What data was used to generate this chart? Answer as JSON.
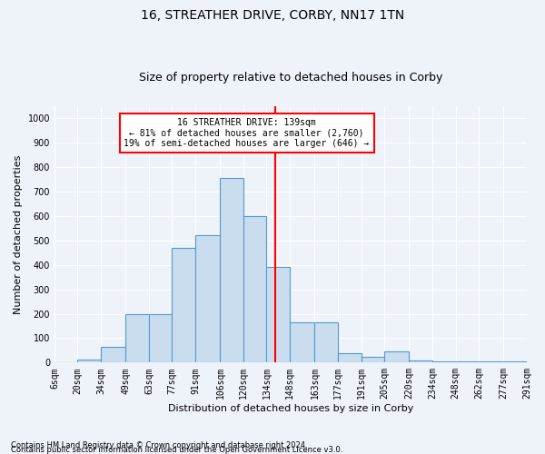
{
  "title": "16, STREATHER DRIVE, CORBY, NN17 1TN",
  "subtitle": "Size of property relative to detached houses in Corby",
  "xlabel": "Distribution of detached houses by size in Corby",
  "ylabel": "Number of detached properties",
  "footnote1": "Contains HM Land Registry data © Crown copyright and database right 2024.",
  "footnote2": "Contains public sector information licensed under the Open Government Licence v3.0.",
  "annotation_line1": "16 STREATHER DRIVE: 139sqm",
  "annotation_line2": "← 81% of detached houses are smaller (2,760)",
  "annotation_line3": "19% of semi-detached houses are larger (646) →",
  "property_size": 139,
  "bin_edges": [
    6,
    20,
    34,
    49,
    63,
    77,
    91,
    106,
    120,
    134,
    148,
    163,
    177,
    191,
    205,
    220,
    234,
    248,
    262,
    277,
    291
  ],
  "bar_heights": [
    0,
    13,
    65,
    200,
    200,
    470,
    520,
    755,
    600,
    390,
    165,
    165,
    40,
    25,
    45,
    10,
    5,
    5,
    5,
    5
  ],
  "bar_color": "#c9ddef",
  "bar_edge_color": "#5599cc",
  "vline_color": "red",
  "vline_x": 139,
  "ylim": [
    0,
    1050
  ],
  "yticks": [
    0,
    100,
    200,
    300,
    400,
    500,
    600,
    700,
    800,
    900,
    1000
  ],
  "tick_labels": [
    "6sqm",
    "20sqm",
    "34sqm",
    "49sqm",
    "63sqm",
    "77sqm",
    "91sqm",
    "106sqm",
    "120sqm",
    "134sqm",
    "148sqm",
    "163sqm",
    "177sqm",
    "191sqm",
    "205sqm",
    "220sqm",
    "234sqm",
    "248sqm",
    "262sqm",
    "277sqm",
    "291sqm"
  ],
  "tick_positions": [
    6,
    20,
    34,
    49,
    63,
    77,
    91,
    106,
    120,
    134,
    148,
    163,
    177,
    191,
    205,
    220,
    234,
    248,
    262,
    277,
    291
  ],
  "background_color": "#eef2f9",
  "grid_color": "white",
  "title_fontsize": 10,
  "subtitle_fontsize": 9,
  "label_fontsize": 8,
  "tick_fontsize": 7,
  "annotation_fontsize": 7,
  "footnote_fontsize": 6,
  "annotation_box_color": "white",
  "annotation_box_edge": "red"
}
